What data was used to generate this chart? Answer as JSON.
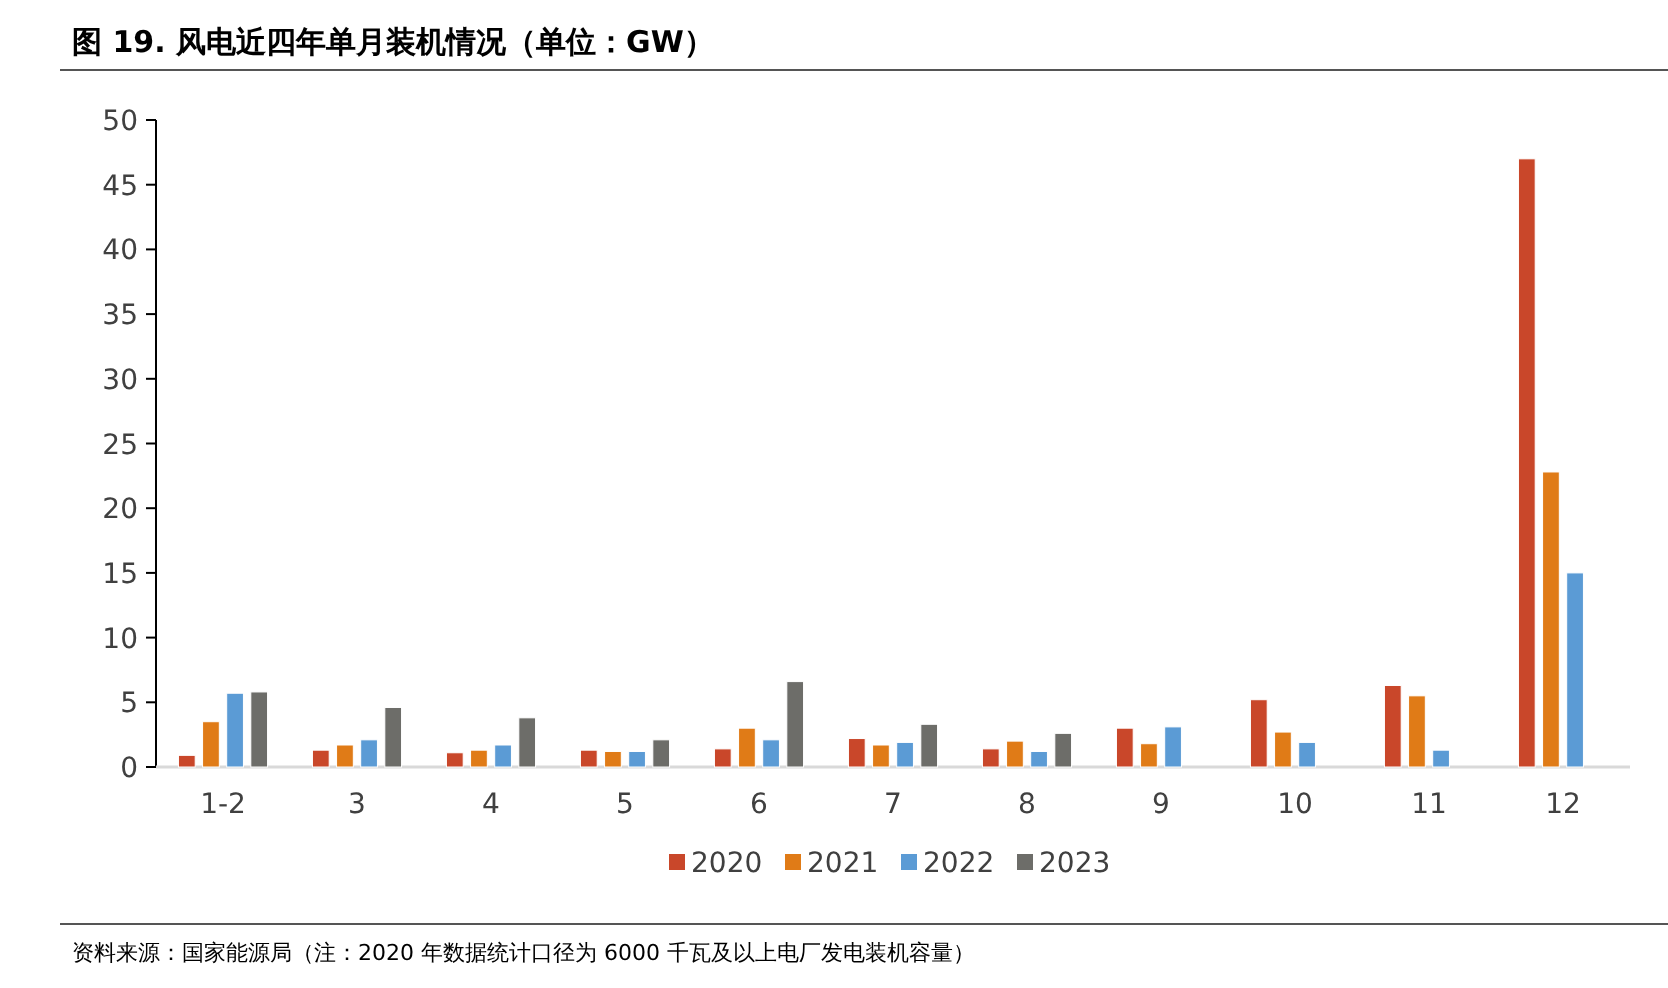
{
  "chart_data": {
    "type": "bar",
    "title": "图 19. 风电近四年单月装机情况（单位：GW）",
    "annotations": [
      "资料来源：国家能源局（注：2020 年数据统计口径为 6000 千瓦及以上电厂发电装机容量）"
    ],
    "categories": [
      "1-2",
      "3",
      "4",
      "5",
      "6",
      "7",
      "8",
      "9",
      "10",
      "11",
      "12"
    ],
    "series": [
      {
        "name": "2020",
        "color": "#c9472a",
        "values": [
          0.9,
          1.3,
          1.1,
          1.3,
          1.4,
          2.2,
          1.4,
          3.0,
          5.2,
          6.3,
          47.0
        ]
      },
      {
        "name": "2021",
        "color": "#e07b17",
        "values": [
          3.5,
          1.7,
          1.3,
          1.2,
          3.0,
          1.7,
          2.0,
          1.8,
          2.7,
          5.5,
          22.8
        ]
      },
      {
        "name": "2022",
        "color": "#5b9bd5",
        "values": [
          5.7,
          2.1,
          1.7,
          1.2,
          2.1,
          1.9,
          1.2,
          3.1,
          1.9,
          1.3,
          15.0
        ]
      },
      {
        "name": "2023",
        "color": "#6d6d69",
        "values": [
          5.8,
          4.6,
          3.8,
          2.1,
          6.6,
          3.3,
          2.6,
          null,
          null,
          null,
          null
        ]
      }
    ],
    "ylim": [
      0,
      50
    ],
    "yticks": [
      0,
      5,
      10,
      15,
      20,
      25,
      30,
      35,
      40,
      45,
      50
    ],
    "grid": false,
    "legend": "bottom"
  }
}
